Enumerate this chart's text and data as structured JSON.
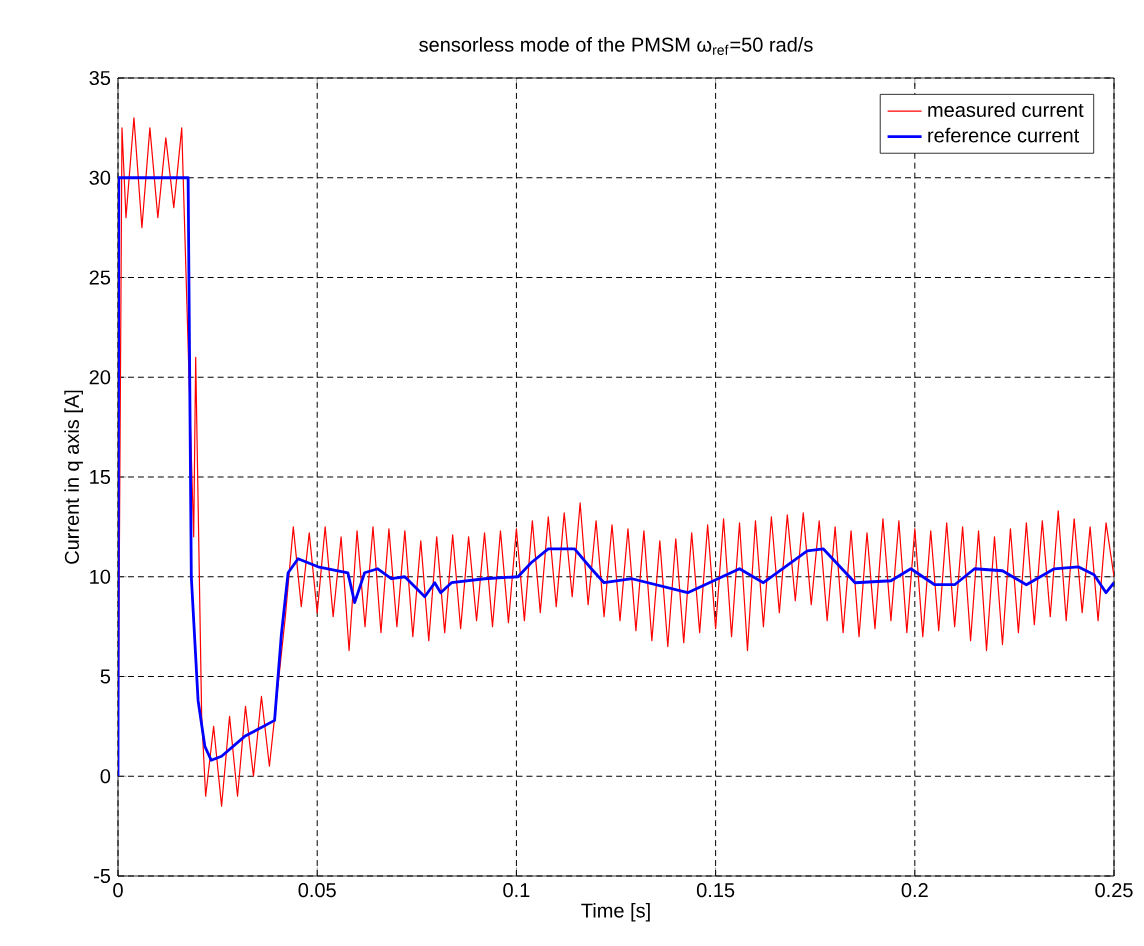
{
  "chart_data": {
    "type": "line",
    "title": "sensorless mode of the PMSM ω$_{ref}$=50 rad/s",
    "xlabel": "Time [s]",
    "ylabel": "Current in q axis [A]",
    "xlim": [
      0,
      0.25
    ],
    "xticks": [
      0,
      0.05,
      0.1,
      0.15,
      0.2,
      0.25
    ],
    "ylim": [
      -5,
      35
    ],
    "yticks": [
      -5,
      0,
      5,
      10,
      15,
      20,
      25,
      30,
      35
    ],
    "grid": true,
    "legend": "top right",
    "marker": "none",
    "line_style": "solid",
    "series": [
      {
        "name": "measured current",
        "color": "#ff0000",
        "x": [
          0,
          0.001,
          0.002,
          0.004,
          0.006,
          0.008,
          0.01,
          0.012,
          0.014,
          0.016,
          0.018,
          0.019,
          0.0195,
          0.02,
          0.021,
          0.022,
          0.024,
          0.026,
          0.028,
          0.03,
          0.032,
          0.034,
          0.036,
          0.038,
          0.04,
          0.042,
          0.044,
          0.046,
          0.048,
          0.05,
          0.052,
          0.054,
          0.056,
          0.058,
          0.06,
          0.062,
          0.064,
          0.066,
          0.068,
          0.07,
          0.072,
          0.074,
          0.076,
          0.078,
          0.08,
          0.082,
          0.084,
          0.086,
          0.088,
          0.09,
          0.092,
          0.094,
          0.096,
          0.098,
          0.1,
          0.102,
          0.104,
          0.106,
          0.108,
          0.11,
          0.112,
          0.114,
          0.116,
          0.118,
          0.12,
          0.122,
          0.124,
          0.126,
          0.128,
          0.13,
          0.132,
          0.134,
          0.136,
          0.138,
          0.14,
          0.142,
          0.144,
          0.146,
          0.148,
          0.15,
          0.152,
          0.154,
          0.156,
          0.158,
          0.16,
          0.162,
          0.164,
          0.166,
          0.168,
          0.17,
          0.172,
          0.174,
          0.176,
          0.178,
          0.18,
          0.182,
          0.184,
          0.186,
          0.188,
          0.19,
          0.192,
          0.194,
          0.196,
          0.198,
          0.2,
          0.202,
          0.204,
          0.206,
          0.208,
          0.21,
          0.212,
          0.214,
          0.216,
          0.218,
          0.22,
          0.222,
          0.224,
          0.226,
          0.228,
          0.23,
          0.232,
          0.234,
          0.236,
          0.238,
          0.24,
          0.242,
          0.244,
          0.246,
          0.248,
          0.25
        ],
        "values": [
          0,
          32.5,
          28,
          33,
          27.5,
          32.5,
          28,
          32,
          28.5,
          32.5,
          null,
          12,
          21,
          null,
          3,
          -1,
          2.5,
          -1.5,
          3,
          -1,
          3.5,
          0,
          4,
          0.5,
          null,
          8,
          12.5,
          8.5,
          12.2,
          8.2,
          12.5,
          8,
          12,
          6.3,
          12.3,
          7.5,
          12.5,
          7.2,
          12.4,
          7.5,
          12.3,
          7,
          11.8,
          6.8,
          12,
          7.2,
          12.1,
          7.4,
          12,
          7.8,
          12.2,
          7.5,
          12.3,
          7.7,
          12.4,
          7.8,
          12.8,
          8.2,
          13,
          8.5,
          13.2,
          9,
          13.7,
          8.6,
          12.8,
          8,
          12.6,
          7.8,
          12.4,
          7.3,
          12.3,
          6.8,
          11.8,
          6.5,
          11.9,
          6.7,
          12.2,
          7.2,
          12.6,
          7.4,
          12.9,
          7,
          12.7,
          6.3,
          12.8,
          7.5,
          13,
          8.2,
          13.1,
          8.8,
          13.2,
          8.6,
          12.8,
          7.8,
          12.5,
          7.2,
          12.3,
          7,
          12.2,
          7.4,
          12.9,
          7.8,
          12.8,
          7.2,
          12.4,
          7,
          12.3,
          7.3,
          12.7,
          7.5,
          12.5,
          6.8,
          12.3,
          6.3,
          12,
          6.6,
          12.4,
          7.2,
          12.7,
          7.6,
          12.8,
          8,
          13.3,
          7.8,
          12.9,
          8.2,
          12.5,
          7.8,
          12.7,
          10
        ]
      },
      {
        "name": "reference current",
        "color": "#0000ff",
        "x": [
          0,
          0.0002,
          0.0176,
          0.0184,
          0.0201,
          0.0218,
          0.0234,
          0.026,
          0.0318,
          0.0393,
          0.041,
          0.0427,
          0.0452,
          0.0502,
          0.0577,
          0.0594,
          0.0619,
          0.0652,
          0.0686,
          0.072,
          0.077,
          0.0795,
          0.081,
          0.0837,
          0.092,
          0.1004,
          0.1037,
          0.108,
          0.1146,
          0.1188,
          0.122,
          0.129,
          0.143,
          0.156,
          0.162,
          0.173,
          0.177,
          0.185,
          0.194,
          0.199,
          0.205,
          0.21,
          0.215,
          0.222,
          0.228,
          0.235,
          0.241,
          0.245,
          0.248,
          0.25
        ],
        "values": [
          0,
          30,
          30,
          10,
          3.8,
          1.5,
          0.8,
          1.0,
          2.0,
          2.8,
          7.1,
          10.2,
          10.9,
          10.5,
          10.2,
          8.7,
          10.2,
          10.4,
          9.9,
          10.0,
          9.0,
          9.7,
          9.2,
          9.7,
          9.9,
          10.0,
          10.7,
          11.4,
          11.4,
          10.4,
          9.7,
          9.9,
          9.2,
          10.4,
          9.7,
          11.3,
          11.4,
          9.7,
          9.8,
          10.4,
          9.6,
          9.6,
          10.4,
          10.3,
          9.6,
          10.4,
          10.5,
          10.1,
          9.2,
          9.7
        ]
      }
    ]
  }
}
